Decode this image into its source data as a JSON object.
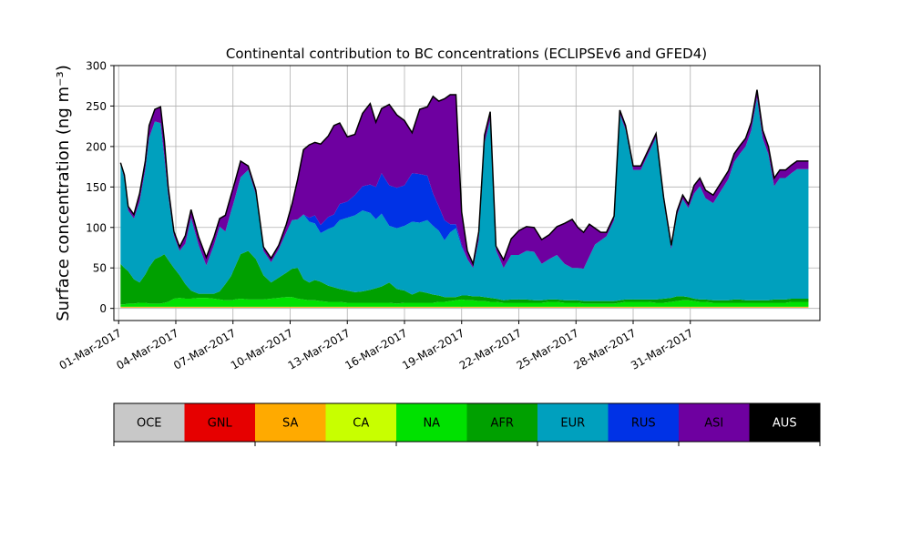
{
  "chart_data": {
    "type": "area",
    "title": "Continental contribution to BC concentrations (ECLIPSEv6 and GFED4)",
    "xlabel": "",
    "ylabel": "Surface concentration (ng m⁻³)",
    "ylim": [
      -15,
      300
    ],
    "xlim_day": [
      -0.25,
      36.8
    ],
    "grid": true,
    "yticks": [
      0,
      50,
      100,
      150,
      200,
      250,
      300
    ],
    "xticks": [
      {
        "day": 0,
        "label": "01-Mar-2017"
      },
      {
        "day": 3,
        "label": "04-Mar-2017"
      },
      {
        "day": 6,
        "label": "07-Mar-2017"
      },
      {
        "day": 9,
        "label": "10-Mar-2017"
      },
      {
        "day": 12,
        "label": "13-Mar-2017"
      },
      {
        "day": 15,
        "label": "16-Mar-2017"
      },
      {
        "day": 18,
        "label": "19-Mar-2017"
      },
      {
        "day": 21,
        "label": "22-Mar-2017"
      },
      {
        "day": 24,
        "label": "25-Mar-2017"
      },
      {
        "day": 27,
        "label": "28-Mar-2017"
      },
      {
        "day": 30,
        "label": "31-Mar-2017"
      }
    ],
    "colorbar": [
      {
        "label": "OCE",
        "color": "#c8c8c8"
      },
      {
        "label": "GNL",
        "color": "#e60000"
      },
      {
        "label": "SA",
        "color": "#ffaa00"
      },
      {
        "label": "CA",
        "color": "#c8ff00"
      },
      {
        "label": "NA",
        "color": "#00e100"
      },
      {
        "label": "AFR",
        "color": "#00a000"
      },
      {
        "label": "EUR",
        "color": "#00a0be"
      },
      {
        "label": "RUS",
        "color": "#0032e6"
      },
      {
        "label": "ASI",
        "color": "#6e00a0"
      },
      {
        "label": "AUS",
        "color": "#000000"
      }
    ],
    "x_day": [
      0.1,
      0.3,
      0.5,
      0.8,
      1.1,
      1.4,
      1.6,
      1.9,
      2.2,
      2.4,
      2.6,
      2.9,
      3.2,
      3.5,
      3.8,
      4.2,
      4.6,
      5.0,
      5.3,
      5.6,
      5.9,
      6.1,
      6.4,
      6.8,
      7.2,
      7.6,
      8.0,
      8.4,
      8.8,
      9.1,
      9.4,
      9.7,
      10.0,
      10.3,
      10.6,
      11.0,
      11.3,
      11.6,
      12.0,
      12.4,
      12.8,
      13.2,
      13.5,
      13.8,
      14.2,
      14.6,
      15.0,
      15.4,
      15.8,
      16.2,
      16.5,
      16.8,
      17.1,
      17.4,
      17.7,
      18.0,
      18.3,
      18.6,
      18.9,
      19.2,
      19.5,
      19.8,
      20.2,
      20.6,
      21.0,
      21.4,
      21.8,
      22.2,
      22.6,
      23.0,
      23.4,
      23.8,
      24.1,
      24.4,
      24.7,
      25.0,
      25.3,
      25.6,
      26.0,
      26.3,
      26.6,
      27.0,
      27.4,
      27.8,
      28.2,
      28.6,
      29.0,
      29.3,
      29.6,
      29.9,
      30.2,
      30.5,
      30.8,
      31.2,
      31.6,
      32.0,
      32.3,
      32.6,
      32.9,
      33.2,
      33.5,
      33.8,
      34.1,
      34.4,
      34.7,
      35.0,
      35.3,
      35.6,
      35.9,
      36.2
    ],
    "series": [
      {
        "name": "OCE",
        "values": [
          1,
          1,
          1,
          1,
          1,
          1,
          1,
          1,
          1,
          1,
          1,
          1,
          1,
          1,
          1,
          1,
          1,
          1,
          1,
          1,
          1,
          1,
          1,
          1,
          1,
          1,
          1,
          1,
          1,
          1,
          1,
          1,
          1,
          1,
          1,
          1,
          1,
          1,
          1,
          1,
          1,
          1,
          1,
          1,
          1,
          1,
          1,
          1,
          1,
          1,
          1,
          1,
          1,
          1,
          1,
          1,
          1,
          1,
          1,
          1,
          1,
          1,
          1,
          1,
          1,
          1,
          1,
          1,
          1,
          1,
          1,
          1,
          1,
          1,
          1,
          1,
          1,
          1,
          1,
          1,
          1,
          1,
          1,
          1,
          1,
          1,
          1,
          1,
          1,
          1,
          1,
          1,
          1,
          1,
          1,
          1,
          1,
          1,
          1,
          1,
          1,
          1,
          1,
          1,
          1,
          1,
          1,
          1,
          1,
          1
        ]
      },
      {
        "name": "GNL",
        "values": [
          0,
          0,
          0,
          0,
          0,
          0,
          0,
          0,
          0,
          0,
          0,
          0,
          0,
          0,
          0,
          0,
          0,
          0,
          0,
          0,
          0,
          0,
          0,
          0,
          0,
          0,
          0,
          0,
          0,
          0,
          0,
          0,
          0,
          0,
          0,
          0,
          0,
          0,
          0,
          0,
          0,
          0,
          0,
          0,
          0,
          0,
          0,
          0,
          0,
          0,
          0,
          0,
          0,
          0,
          0,
          0,
          0,
          0,
          0,
          0,
          0,
          0,
          0,
          0,
          0,
          0,
          0,
          0,
          0,
          0,
          0,
          0,
          0,
          0,
          0,
          0,
          0,
          0,
          0,
          0,
          0,
          0,
          0,
          0,
          0,
          0,
          0,
          0,
          0,
          0,
          0,
          0,
          0,
          0,
          0,
          0,
          0,
          0,
          0,
          0,
          0,
          0,
          0,
          0,
          0,
          0,
          0,
          0,
          0,
          0
        ]
      },
      {
        "name": "SA",
        "values": [
          1,
          1,
          1,
          1,
          1,
          1,
          1,
          1,
          1,
          1,
          1,
          1,
          1,
          1,
          1,
          1,
          1,
          1,
          1,
          1,
          1,
          1,
          1,
          1,
          1,
          1,
          1,
          1,
          1,
          1,
          1,
          1,
          1,
          1,
          1,
          1,
          1,
          1,
          1,
          1,
          1,
          1,
          1,
          1,
          1,
          1,
          1,
          1,
          1,
          1,
          1,
          1,
          1,
          1,
          1,
          1,
          1,
          1,
          1,
          1,
          1,
          1,
          1,
          1,
          1,
          1,
          1,
          1,
          1,
          1,
          1,
          1,
          1,
          1,
          1,
          1,
          1,
          1,
          1,
          1,
          1,
          1,
          1,
          1,
          1,
          1,
          1,
          1,
          1,
          1,
          1,
          1,
          1,
          1,
          1,
          1,
          1,
          1,
          1,
          1,
          1,
          1,
          1,
          1,
          1,
          1,
          1,
          1,
          1,
          1
        ]
      },
      {
        "name": "CA",
        "values": [
          0,
          0,
          0,
          0,
          0,
          0,
          0,
          0,
          0,
          0,
          0,
          0,
          0,
          0,
          0,
          0,
          0,
          0,
          0,
          0,
          0,
          0,
          0,
          0,
          0,
          0,
          0,
          0,
          0,
          0,
          0,
          0,
          0,
          0,
          0,
          0,
          0,
          0,
          0,
          0,
          0,
          0,
          0,
          0,
          0,
          0,
          0,
          0,
          0,
          0,
          0,
          0,
          0,
          0,
          0,
          0,
          0,
          0,
          0,
          0,
          0,
          0,
          0,
          0,
          0,
          0,
          0,
          0,
          0,
          0,
          0,
          0,
          0,
          0,
          0,
          0,
          0,
          0,
          0,
          0,
          0,
          0,
          0,
          0,
          0,
          0,
          0,
          0,
          0,
          0,
          0,
          0,
          0,
          0,
          0,
          0,
          0,
          0,
          0,
          0,
          0,
          0,
          0,
          0,
          0,
          0,
          0,
          0,
          0,
          0
        ]
      },
      {
        "name": "NA",
        "values": [
          3,
          3,
          4,
          4,
          5,
          5,
          4,
          4,
          4,
          5,
          6,
          10,
          11,
          10,
          10,
          11,
          11,
          10,
          9,
          8,
          8,
          9,
          10,
          9,
          9,
          9,
          10,
          11,
          12,
          12,
          10,
          9,
          8,
          8,
          7,
          6,
          6,
          6,
          5,
          5,
          5,
          5,
          5,
          5,
          5,
          4,
          5,
          5,
          5,
          5,
          5,
          6,
          6,
          7,
          8,
          9,
          8,
          8,
          7,
          7,
          6,
          6,
          5,
          5,
          5,
          5,
          5,
          5,
          6,
          6,
          5,
          5,
          5,
          4,
          4,
          4,
          4,
          4,
          4,
          5,
          6,
          6,
          6,
          6,
          5,
          5,
          6,
          7,
          8,
          8,
          7,
          6,
          6,
          5,
          5,
          5,
          5,
          5,
          5,
          5,
          5,
          5,
          5,
          5,
          5,
          5,
          6,
          6,
          6,
          6
        ]
      },
      {
        "name": "AFR",
        "values": [
          50,
          45,
          40,
          30,
          25,
          35,
          45,
          55,
          58,
          60,
          52,
          38,
          28,
          18,
          10,
          5,
          5,
          6,
          10,
          20,
          30,
          40,
          55,
          60,
          50,
          30,
          20,
          25,
          30,
          35,
          38,
          25,
          22,
          25,
          24,
          20,
          18,
          16,
          15,
          13,
          14,
          16,
          18,
          20,
          25,
          18,
          15,
          10,
          14,
          12,
          10,
          8,
          6,
          5,
          4,
          5,
          6,
          5,
          6,
          5,
          5,
          4,
          3,
          4,
          4,
          4,
          3,
          3,
          3,
          3,
          3,
          3,
          3,
          3,
          3,
          3,
          3,
          3,
          3,
          3,
          3,
          3,
          3,
          3,
          4,
          5,
          5,
          6,
          5,
          4,
          3,
          3,
          3,
          3,
          3,
          3,
          4,
          4,
          3,
          3,
          3,
          3,
          3,
          4,
          4,
          4,
          4,
          4,
          4,
          4
        ]
      },
      {
        "name": "EUR",
        "values": [
          125,
          110,
          75,
          75,
          100,
          130,
          160,
          170,
          165,
          120,
          80,
          40,
          30,
          50,
          90,
          60,
          35,
          60,
          80,
          65,
          80,
          85,
          95,
          100,
          80,
          30,
          25,
          35,
          50,
          60,
          60,
          80,
          75,
          70,
          60,
          70,
          75,
          85,
          90,
          95,
          100,
          95,
          85,
          90,
          70,
          75,
          80,
          90,
          85,
          90,
          85,
          80,
          70,
          80,
          85,
          60,
          45,
          35,
          70,
          190,
          220,
          60,
          40,
          55,
          55,
          60,
          60,
          45,
          50,
          55,
          45,
          40,
          40,
          40,
          55,
          70,
          75,
          80,
          100,
          230,
          210,
          160,
          160,
          180,
          200,
          120,
          60,
          100,
          120,
          110,
          130,
          140,
          125,
          120,
          135,
          150,
          170,
          180,
          190,
          210,
          250,
          200,
          180,
          140,
          150,
          150,
          155,
          160,
          160,
          160
        ]
      },
      {
        "name": "RUS",
        "values": [
          0,
          0,
          0,
          0,
          0,
          0,
          0,
          0,
          0,
          0,
          0,
          0,
          0,
          0,
          0,
          0,
          0,
          0,
          0,
          0,
          0,
          0,
          0,
          0,
          0,
          0,
          0,
          0,
          0,
          0,
          0,
          0,
          5,
          10,
          10,
          15,
          15,
          20,
          20,
          25,
          30,
          35,
          40,
          50,
          50,
          50,
          50,
          60,
          60,
          55,
          40,
          30,
          25,
          10,
          5,
          3,
          0,
          0,
          0,
          0,
          0,
          0,
          0,
          0,
          0,
          0,
          0,
          0,
          0,
          0,
          0,
          0,
          0,
          0,
          0,
          0,
          0,
          0,
          0,
          0,
          0,
          0,
          0,
          0,
          0,
          0,
          0,
          0,
          0,
          0,
          0,
          0,
          0,
          0,
          0,
          0,
          0,
          0,
          0,
          0,
          0,
          0,
          0,
          0,
          0,
          0,
          0,
          0,
          0,
          0
        ]
      },
      {
        "name": "ASI",
        "values": [
          0,
          5,
          5,
          5,
          10,
          10,
          15,
          15,
          20,
          20,
          10,
          5,
          5,
          10,
          10,
          10,
          10,
          10,
          10,
          20,
          20,
          20,
          20,
          5,
          5,
          5,
          5,
          5,
          10,
          20,
          50,
          80,
          90,
          90,
          100,
          100,
          110,
          100,
          80,
          75,
          90,
          100,
          80,
          80,
          100,
          90,
          80,
          50,
          80,
          85,
          120,
          130,
          150,
          160,
          160,
          40,
          10,
          5,
          10,
          10,
          10,
          5,
          10,
          20,
          30,
          30,
          30,
          30,
          30,
          35,
          50,
          60,
          50,
          45,
          40,
          20,
          10,
          5,
          5,
          5,
          5,
          5,
          5,
          5,
          5,
          5,
          5,
          5,
          5,
          5,
          10,
          10,
          10,
          10,
          10,
          10,
          10,
          10,
          10,
          10,
          10,
          10,
          10,
          10,
          10,
          10,
          10,
          10,
          10,
          10
        ]
      },
      {
        "name": "AUS",
        "values": [
          0,
          0,
          0,
          0,
          0,
          0,
          0,
          0,
          0,
          0,
          0,
          0,
          0,
          0,
          0,
          0,
          0,
          0,
          0,
          0,
          0,
          0,
          0,
          0,
          0,
          0,
          0,
          0,
          0,
          0,
          0,
          0,
          0,
          0,
          0,
          0,
          0,
          0,
          0,
          0,
          0,
          0,
          0,
          0,
          0,
          0,
          0,
          0,
          0,
          0,
          0,
          0,
          0,
          0,
          0,
          0,
          0,
          0,
          0,
          0,
          0,
          0,
          0,
          0,
          0,
          0,
          0,
          0,
          0,
          0,
          0,
          0,
          0,
          0,
          0,
          0,
          0,
          0,
          0,
          0,
          0,
          0,
          0,
          0,
          0,
          0,
          0,
          0,
          0,
          0,
          0,
          0,
          0,
          0,
          0,
          0,
          0,
          0,
          0,
          0,
          0,
          0,
          0,
          0,
          0,
          0,
          0,
          0,
          0,
          0
        ]
      }
    ]
  }
}
